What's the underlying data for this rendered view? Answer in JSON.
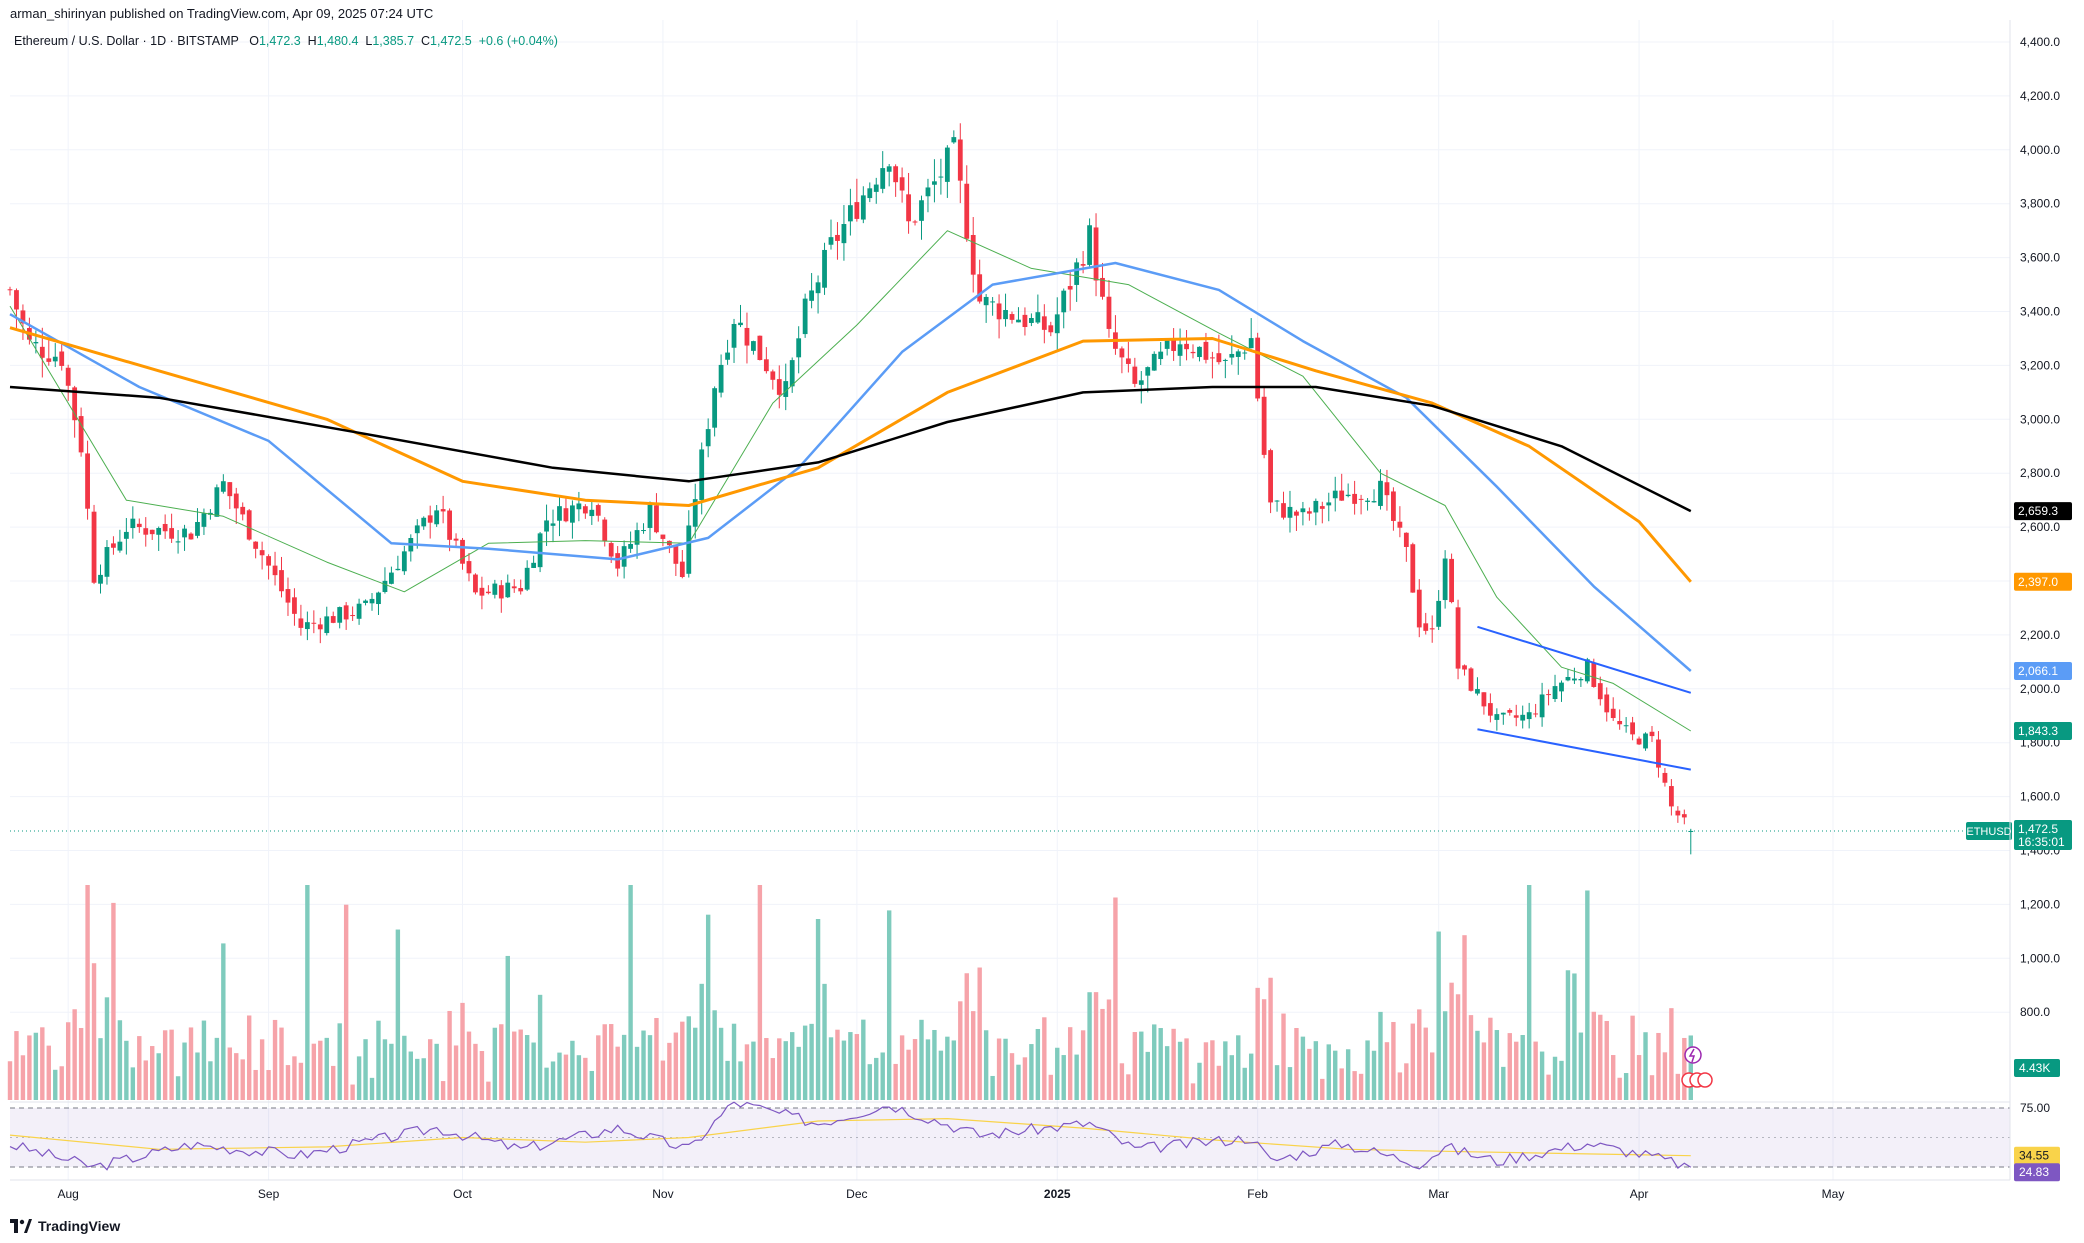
{
  "header": {
    "publisher": "arman_shirinyan published on TradingView.com, Apr 09, 2025 07:24 UTC"
  },
  "legend": {
    "symbol": "Ethereum / U.S. Dollar · 1D · BITSTAMP",
    "o_label": "O",
    "o": "1,472.3",
    "h_label": "H",
    "h": "1,480.4",
    "l_label": "L",
    "l": "1,385.7",
    "c_label": "C",
    "c": "1,472.5",
    "change": "+0.6 (+0.04%)"
  },
  "footer": {
    "brand": "TradingView"
  },
  "colors": {
    "up": "#089981",
    "down": "#f23645",
    "vol_up": "#7fcbbd",
    "vol_down": "#f6a3a9",
    "ma20": "#4caf50",
    "ma50": "#5b9cf6",
    "ma100": "#ff9800",
    "ma200": "#000000",
    "channel": "#2962ff",
    "rsi": "#7e57c2",
    "rsi_ma": "#f9d34a"
  },
  "chart_data": {
    "type": "candlestick",
    "symbol": "ETHUSD",
    "price_axis": {
      "ticks": [
        "4,400.0",
        "4,200.0",
        "4,000.0",
        "3,800.0",
        "3,600.0",
        "3,400.0",
        "3,200.0",
        "3,000.0",
        "2,800.0",
        "2,600.0",
        "2,400.0",
        "2,200.0",
        "2,000.0",
        "1,800.0",
        "1,600.0",
        "1,400.0",
        "1,200.0",
        "1,000.0",
        "800.0"
      ],
      "tick_values": [
        4400,
        4200,
        4000,
        3800,
        3600,
        3400,
        3200,
        3000,
        2800,
        2600,
        2400,
        2200,
        2000,
        1800,
        1600,
        1400,
        1200,
        1000,
        800
      ],
      "range": [
        700,
        4500
      ]
    },
    "time_axis": {
      "labels": [
        "Aug",
        "Sep",
        "Oct",
        "Nov",
        "Dec",
        "2025",
        "Feb",
        "Mar",
        "Apr",
        "May"
      ],
      "dates": [
        "2024-08-01",
        "2024-09-01",
        "2024-10-01",
        "2024-11-01",
        "2024-12-01",
        "2025-01-01",
        "2025-02-01",
        "2025-03-01",
        "2025-04-01",
        "2025-05-01"
      ]
    },
    "candle_range": [
      "2024-07-23",
      "2025-04-09"
    ],
    "close_path": [
      [
        "2024-07-23",
        3480
      ],
      [
        "2024-07-26",
        3280
      ],
      [
        "2024-07-31",
        3230
      ],
      [
        "2024-08-03",
        2900
      ],
      [
        "2024-08-05",
        2420
      ],
      [
        "2024-08-10",
        2600
      ],
      [
        "2024-08-20",
        2580
      ],
      [
        "2024-08-25",
        2760
      ],
      [
        "2024-08-31",
        2500
      ],
      [
        "2024-09-06",
        2230
      ],
      [
        "2024-09-16",
        2300
      ],
      [
        "2024-09-27",
        2680
      ],
      [
        "2024-10-03",
        2350
      ],
      [
        "2024-10-10",
        2380
      ],
      [
        "2024-10-14",
        2630
      ],
      [
        "2024-10-21",
        2700
      ],
      [
        "2024-10-25",
        2460
      ],
      [
        "2024-10-30",
        2660
      ],
      [
        "2024-11-04",
        2420
      ],
      [
        "2024-11-06",
        2720
      ],
      [
        "2024-11-09",
        3130
      ],
      [
        "2024-11-12",
        3380
      ],
      [
        "2024-11-20",
        3100
      ],
      [
        "2024-11-23",
        3400
      ],
      [
        "2024-11-27",
        3640
      ],
      [
        "2024-12-06",
        3990
      ],
      [
        "2024-12-09",
        3720
      ],
      [
        "2024-12-16",
        3990
      ],
      [
        "2024-12-20",
        3440
      ],
      [
        "2024-12-31",
        3330
      ],
      [
        "2025-01-06",
        3680
      ],
      [
        "2025-01-09",
        3300
      ],
      [
        "2025-01-13",
        3120
      ],
      [
        "2025-01-20",
        3300
      ],
      [
        "2025-01-27",
        3200
      ],
      [
        "2025-01-31",
        3300
      ],
      [
        "2025-02-02",
        2870
      ],
      [
        "2025-02-03",
        2680
      ],
      [
        "2025-02-08",
        2640
      ],
      [
        "2025-02-14",
        2720
      ],
      [
        "2025-02-20",
        2740
      ],
      [
        "2025-02-24",
        2500
      ],
      [
        "2025-02-26",
        2250
      ],
      [
        "2025-02-28",
        2200
      ],
      [
        "2025-03-02",
        2510
      ],
      [
        "2025-03-04",
        2080
      ],
      [
        "2025-03-10",
        1880
      ],
      [
        "2025-03-15",
        1900
      ],
      [
        "2025-03-19",
        2010
      ],
      [
        "2025-03-24",
        2080
      ],
      [
        "2025-03-28",
        1880
      ],
      [
        "2025-03-31",
        1820
      ],
      [
        "2025-04-03",
        1810
      ],
      [
        "2025-04-06",
        1560
      ],
      [
        "2025-04-09",
        1472.5
      ]
    ],
    "moving_averages": [
      {
        "name": "MA20",
        "last": "1,843.3",
        "points": [
          [
            "2024-07-23",
            3420
          ],
          [
            "2024-08-10",
            2700
          ],
          [
            "2024-08-25",
            2640
          ],
          [
            "2024-09-10",
            2470
          ],
          [
            "2024-09-22",
            2360
          ],
          [
            "2024-10-05",
            2540
          ],
          [
            "2024-10-20",
            2550
          ],
          [
            "2024-11-05",
            2540
          ],
          [
            "2024-11-18",
            3060
          ],
          [
            "2024-12-01",
            3350
          ],
          [
            "2024-12-15",
            3700
          ],
          [
            "2024-12-28",
            3560
          ],
          [
            "2025-01-12",
            3500
          ],
          [
            "2025-01-26",
            3320
          ],
          [
            "2025-02-08",
            3160
          ],
          [
            "2025-02-20",
            2800
          ],
          [
            "2025-03-02",
            2680
          ],
          [
            "2025-03-10",
            2340
          ],
          [
            "2025-03-20",
            2080
          ],
          [
            "2025-03-28",
            2020
          ],
          [
            "2025-04-09",
            1843.3
          ]
        ]
      },
      {
        "name": "MA50",
        "last": "2,066.1",
        "points": [
          [
            "2024-07-23",
            3390
          ],
          [
            "2024-08-12",
            3120
          ],
          [
            "2024-09-01",
            2920
          ],
          [
            "2024-09-20",
            2540
          ],
          [
            "2024-10-05",
            2520
          ],
          [
            "2024-10-25",
            2480
          ],
          [
            "2024-11-08",
            2560
          ],
          [
            "2024-11-22",
            2820
          ],
          [
            "2024-12-08",
            3250
          ],
          [
            "2024-12-22",
            3500
          ],
          [
            "2025-01-10",
            3580
          ],
          [
            "2025-01-26",
            3480
          ],
          [
            "2025-02-08",
            3290
          ],
          [
            "2025-02-24",
            3080
          ],
          [
            "2025-03-10",
            2750
          ],
          [
            "2025-03-25",
            2380
          ],
          [
            "2025-04-09",
            2066.1
          ]
        ]
      },
      {
        "name": "MA100",
        "last": "2,397.0",
        "points": [
          [
            "2024-07-23",
            3340
          ],
          [
            "2024-08-15",
            3180
          ],
          [
            "2024-09-10",
            3000
          ],
          [
            "2024-10-01",
            2770
          ],
          [
            "2024-10-20",
            2700
          ],
          [
            "2024-11-05",
            2680
          ],
          [
            "2024-11-25",
            2820
          ],
          [
            "2024-12-15",
            3100
          ],
          [
            "2025-01-05",
            3290
          ],
          [
            "2025-01-25",
            3300
          ],
          [
            "2025-02-10",
            3180
          ],
          [
            "2025-02-28",
            3060
          ],
          [
            "2025-03-15",
            2900
          ],
          [
            "2025-04-01",
            2620
          ],
          [
            "2025-04-09",
            2397
          ]
        ]
      },
      {
        "name": "MA200",
        "last": "2,659.3",
        "points": [
          [
            "2024-07-23",
            3120
          ],
          [
            "2024-08-15",
            3080
          ],
          [
            "2024-09-15",
            2950
          ],
          [
            "2024-10-15",
            2820
          ],
          [
            "2024-11-05",
            2770
          ],
          [
            "2024-11-25",
            2840
          ],
          [
            "2024-12-15",
            2990
          ],
          [
            "2025-01-05",
            3100
          ],
          [
            "2025-01-25",
            3120
          ],
          [
            "2025-02-10",
            3120
          ],
          [
            "2025-02-28",
            3050
          ],
          [
            "2025-03-20",
            2900
          ],
          [
            "2025-04-09",
            2659.3
          ]
        ]
      }
    ],
    "channel_lines": [
      {
        "from": [
          "2025-03-07",
          2230
        ],
        "to": [
          "2025-04-09",
          1985
        ]
      },
      {
        "from": [
          "2025-03-07",
          1850
        ],
        "to": [
          "2025-04-09",
          1700
        ]
      }
    ],
    "price_labels": [
      {
        "text": "2,659.3",
        "value": 2659.3,
        "color": "#000000"
      },
      {
        "text": "2,397.0",
        "value": 2397.0,
        "color": "#ff9800"
      },
      {
        "text": "2,066.1",
        "value": 2066.1,
        "color": "#5b9cf6"
      },
      {
        "text": "1,843.3",
        "value": 1843.3,
        "color": "#089981"
      },
      {
        "text": "1,472.5",
        "value": 1472.5,
        "color": "#089981",
        "sub": "16:35:01",
        "tag": "ETHUSD"
      }
    ],
    "volume": {
      "label": "4.43K",
      "last": 4.43,
      "unit": "K"
    },
    "rsi": {
      "levels": {
        "upper": "75.00",
        "lower": "25.00"
      },
      "ma_label": "34.55",
      "value_label": "24.83",
      "path": [
        [
          "2024-07-23",
          44
        ],
        [
          "2024-08-05",
          25
        ],
        [
          "2024-08-20",
          44
        ],
        [
          "2024-09-06",
          35
        ],
        [
          "2024-09-27",
          58
        ],
        [
          "2024-10-10",
          40
        ],
        [
          "2024-10-25",
          58
        ],
        [
          "2024-11-05",
          40
        ],
        [
          "2024-11-12",
          80
        ],
        [
          "2024-11-25",
          62
        ],
        [
          "2024-12-06",
          78
        ],
        [
          "2024-12-20",
          52
        ],
        [
          "2025-01-06",
          62
        ],
        [
          "2025-01-13",
          40
        ],
        [
          "2025-01-31",
          50
        ],
        [
          "2025-02-03",
          30
        ],
        [
          "2025-02-14",
          45
        ],
        [
          "2025-02-26",
          28
        ],
        [
          "2025-03-02",
          42
        ],
        [
          "2025-03-10",
          30
        ],
        [
          "2025-03-24",
          45
        ],
        [
          "2025-04-03",
          34
        ],
        [
          "2025-04-09",
          24.83
        ]
      ],
      "ma_path": [
        [
          "2024-07-23",
          52
        ],
        [
          "2024-08-15",
          40
        ],
        [
          "2024-09-10",
          42
        ],
        [
          "2024-10-01",
          50
        ],
        [
          "2024-10-20",
          46
        ],
        [
          "2024-11-05",
          50
        ],
        [
          "2024-11-25",
          64
        ],
        [
          "2024-12-15",
          66
        ],
        [
          "2025-01-05",
          58
        ],
        [
          "2025-01-25",
          48
        ],
        [
          "2025-02-15",
          40
        ],
        [
          "2025-03-05",
          38
        ],
        [
          "2025-03-25",
          36
        ],
        [
          "2025-04-09",
          34.55
        ]
      ]
    }
  }
}
